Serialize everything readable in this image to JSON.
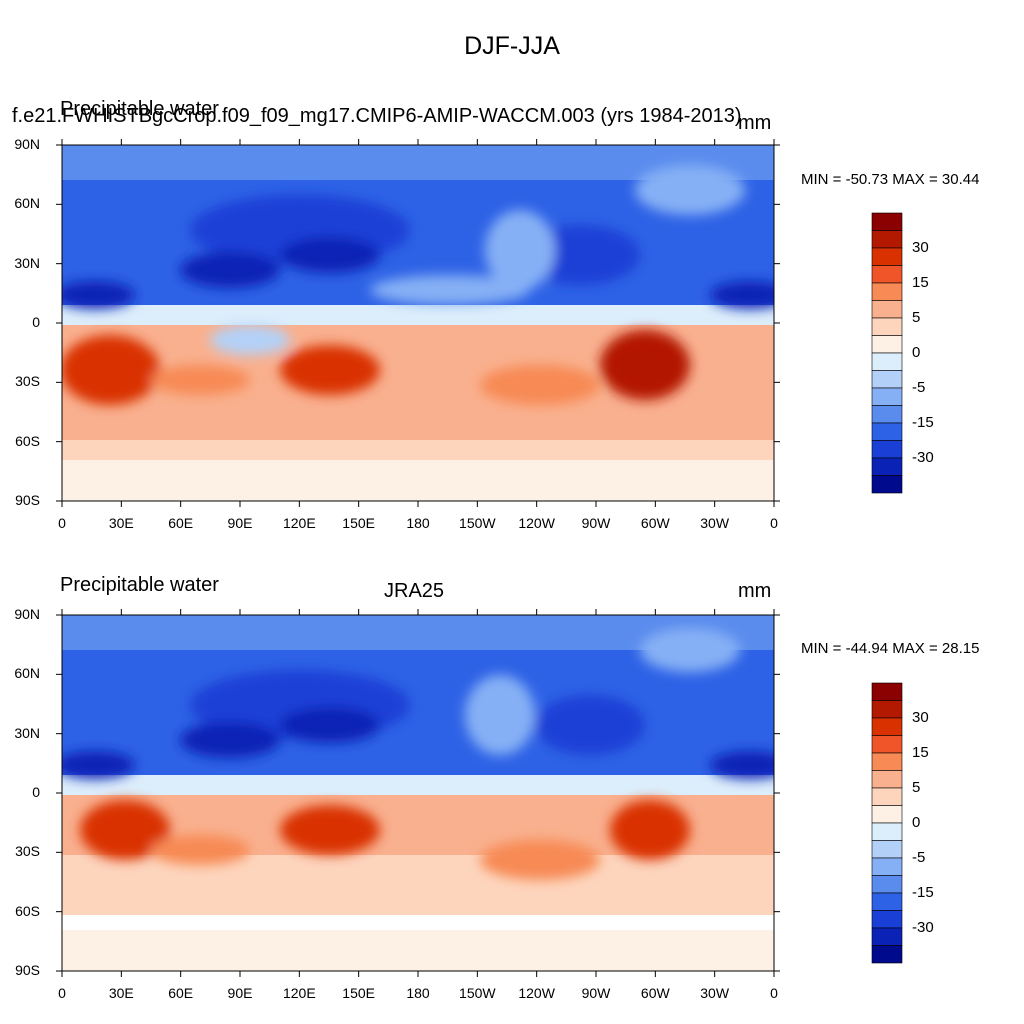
{
  "title": "DJF-JJA",
  "panels": [
    {
      "left_title": "Precipitable water",
      "center_title": "f.e21.FWHISTBgcCrop.f09_f09_mg17.CMIP6-AMIP-WACCM.003 (yrs 1984-2013)",
      "units": "mm",
      "min_max": "MIN = -50.73 MAX =  30.44"
    },
    {
      "left_title": "Precipitable water",
      "center_title": "JRA25",
      "units": "mm",
      "min_max": "MIN = -44.94 MAX =  28.15"
    }
  ],
  "lat_labels": [
    "90N",
    "60N",
    "30N",
    "0",
    "30S",
    "60S",
    "90S"
  ],
  "lon_labels": [
    "0",
    "30E",
    "60E",
    "90E",
    "120E",
    "150E",
    "180",
    "150W",
    "120W",
    "90W",
    "60W",
    "30W",
    "0"
  ],
  "colorbar": {
    "labels": [
      "30",
      "15",
      "5",
      "0",
      "-5",
      "-15",
      "-30"
    ],
    "colors": [
      "#8b0000",
      "#b31900",
      "#d93200",
      "#f0552a",
      "#f78a55",
      "#f9b08e",
      "#fdd5bd",
      "#fdf0e4",
      "#dceefb",
      "#b3d1f8",
      "#86b0f5",
      "#5a8cee",
      "#2e62e6",
      "#1a3fd6",
      "#0a22b6",
      "#000a8c"
    ]
  }
}
